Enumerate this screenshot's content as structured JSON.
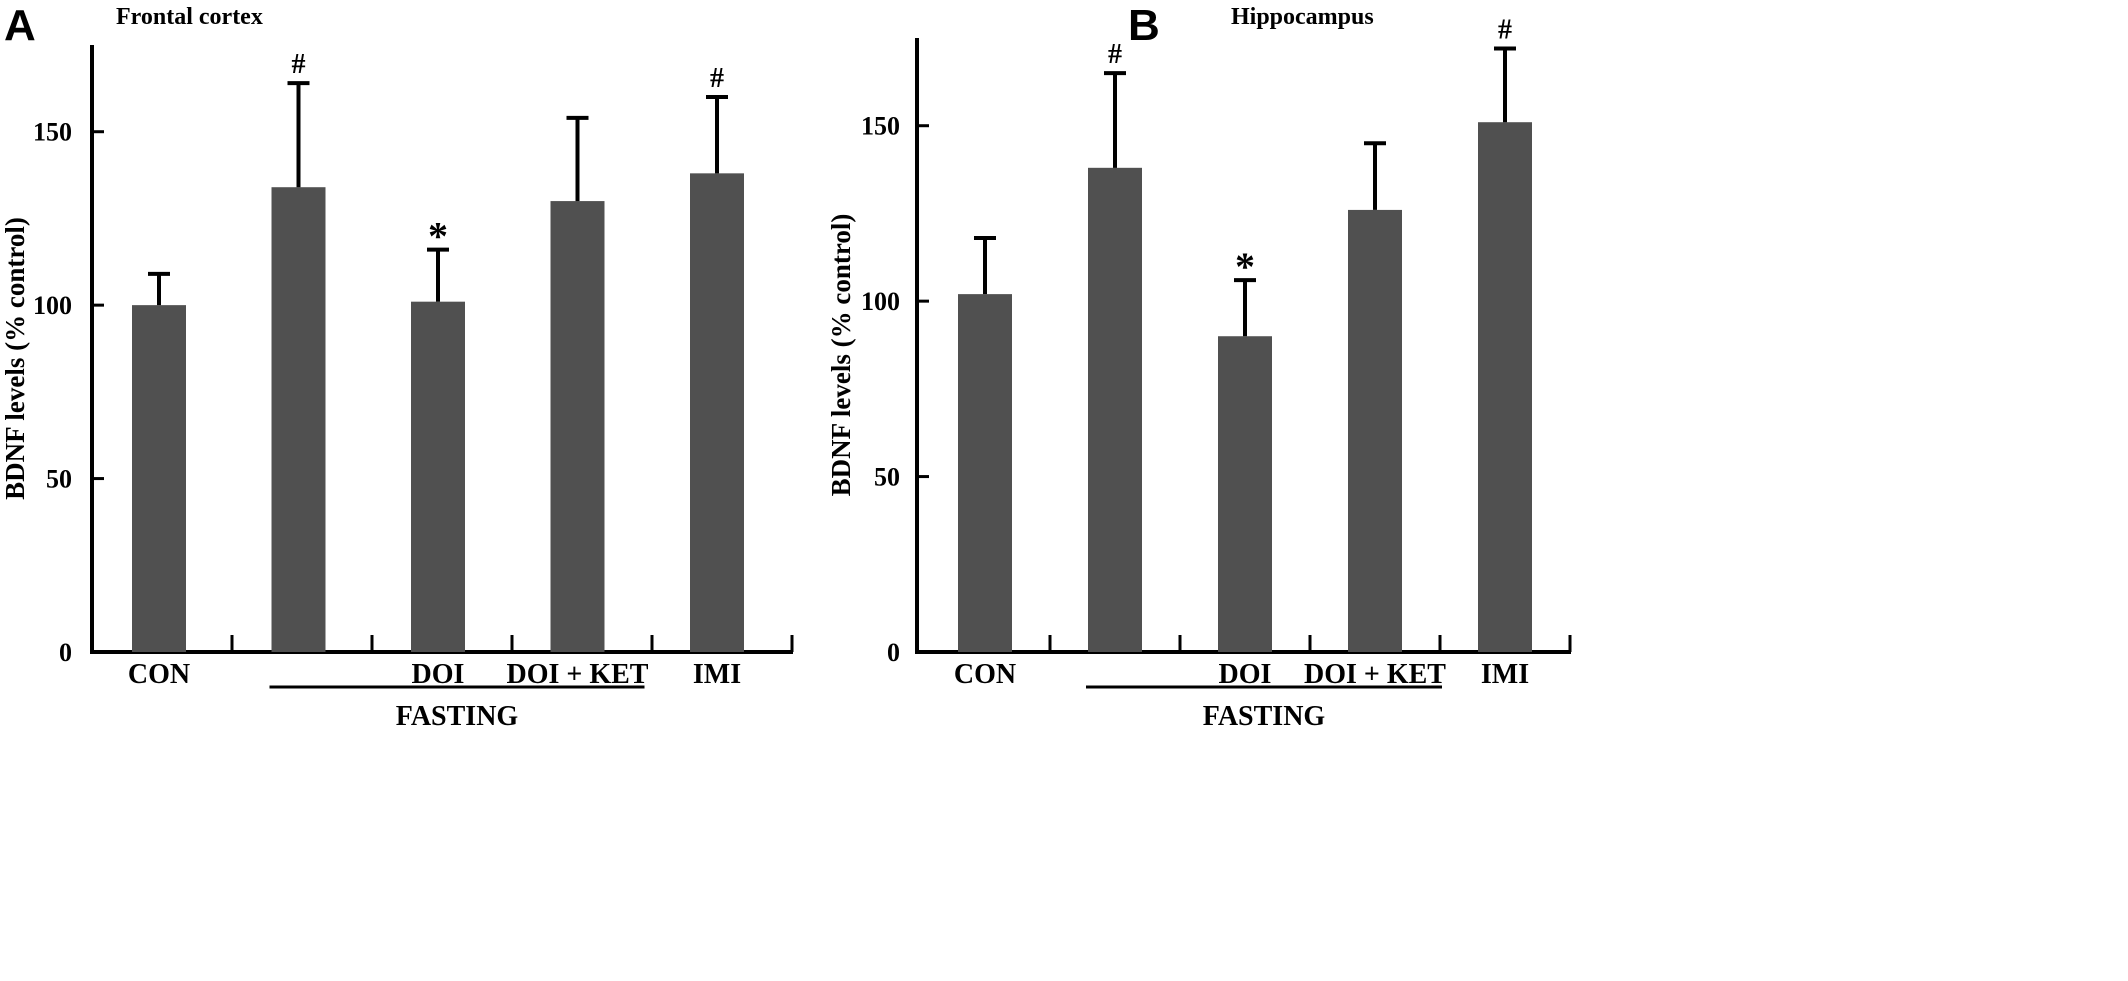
{
  "colors": {
    "bar": "#505050",
    "axis": "#000000",
    "error_bar": "#000000"
  },
  "chart_data": [
    {
      "type": "bar",
      "panel": "A",
      "title": "Frontal cortex",
      "ylabel": "BDNF levels (% control)",
      "ylim": [
        0,
        175
      ],
      "yticks": [
        "0",
        "50",
        "100",
        "150"
      ],
      "categories": [
        "CON",
        "",
        "DOI",
        "DOI + KET",
        "IMI"
      ],
      "values": [
        100,
        134,
        101,
        130,
        138
      ],
      "errors": [
        9,
        30,
        15,
        24,
        22
      ],
      "markers": [
        "",
        "#",
        "*",
        "",
        "#"
      ],
      "group": {
        "label": "FASTING",
        "from": 1,
        "to": 3
      }
    },
    {
      "type": "bar",
      "panel": "B",
      "title": "Hippocampus",
      "ylabel": "BDNF levels (% control)",
      "ylim": [
        0,
        175
      ],
      "yticks": [
        "0",
        "50",
        "100",
        "150"
      ],
      "categories": [
        "CON",
        "",
        "DOI",
        "DOI + KET",
        "IMI"
      ],
      "values": [
        102,
        138,
        90,
        126,
        151
      ],
      "errors": [
        16,
        27,
        16,
        19,
        21
      ],
      "markers": [
        "",
        "#",
        "*",
        "",
        "#"
      ],
      "group": {
        "label": "FASTING",
        "from": 1,
        "to": 3
      }
    }
  ]
}
